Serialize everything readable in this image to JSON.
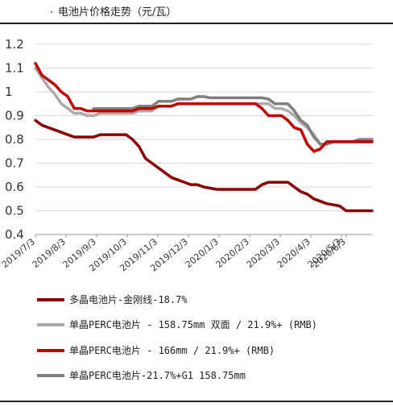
{
  "title": "电池片价格走势（元/瓦）",
  "chart_data": {
    "type": "line",
    "ylim": [
      0.4,
      1.2
    ],
    "yticks": [
      "1.2",
      "1.1",
      "1",
      "0.9",
      "0.8",
      "0.7",
      "0.6",
      "0.5",
      "0.4"
    ],
    "grid": true,
    "legend_position": "bottom",
    "x": [
      "2019/7/3",
      "2019/7/10",
      "2019/7/17",
      "2019/7/24",
      "2019/7/31",
      "2019/8/7",
      "2019/8/14",
      "2019/8/21",
      "2019/8/28",
      "2019/9/4",
      "2019/9/11",
      "2019/9/18",
      "2019/9/25",
      "2019/10/2",
      "2019/10/9",
      "2019/10/16",
      "2019/10/23",
      "2019/10/30",
      "2019/11/6",
      "2019/11/13",
      "2019/11/20",
      "2019/11/27",
      "2019/12/4",
      "2019/12/11",
      "2019/12/18",
      "2019/12/25",
      "2020/1/1",
      "2020/1/8",
      "2020/1/15",
      "2020/1/22",
      "2020/1/29",
      "2020/2/5",
      "2020/2/12",
      "2020/2/19",
      "2020/2/26",
      "2020/3/4",
      "2020/3/11",
      "2020/3/18",
      "2020/3/25",
      "2020/4/1",
      "2020/4/8",
      "2020/4/15",
      "2020/4/22",
      "2020/4/29",
      "2020/5/6",
      "2020/5/13",
      "2020/5/20",
      "2020/5/27",
      "2020/6/3",
      "2020/6/10",
      "2020/6/17",
      "2020/6/24",
      "2020/7/1"
    ],
    "xticks": [
      "2019/7/3",
      "2019/8/3",
      "2019/9/3",
      "2019/10/3",
      "2019/11/3",
      "2019/12/3",
      "2020/1/3",
      "2020/2/3",
      "2020/3/3",
      "2020/4/3",
      "2020/5/3",
      "2020/6/3"
    ],
    "series": [
      {
        "name": "多晶电池片-金刚线-18.7%",
        "color": "#8B0000",
        "values": [
          0.88,
          0.86,
          0.85,
          0.84,
          0.83,
          0.82,
          0.81,
          0.81,
          0.81,
          0.81,
          0.82,
          0.82,
          0.82,
          0.82,
          0.82,
          0.8,
          0.77,
          0.72,
          0.7,
          0.68,
          0.66,
          0.64,
          0.63,
          0.62,
          0.61,
          0.61,
          0.6,
          0.595,
          0.59,
          0.59,
          0.59,
          0.59,
          0.59,
          0.59,
          0.59,
          0.61,
          0.62,
          0.62,
          0.62,
          0.62,
          0.6,
          0.58,
          0.57,
          0.55,
          0.54,
          0.53,
          0.525,
          0.52,
          0.5,
          0.5,
          0.5,
          0.5,
          0.5
        ]
      },
      {
        "name": "单晶PERC电池片 - 158.75mm 双面 / 21.9%+ (RMB)",
        "color": "#AAAAAA",
        "values": [
          1.1,
          1.06,
          1.02,
          0.99,
          0.95,
          0.93,
          0.91,
          0.91,
          0.9,
          0.9,
          0.91,
          0.91,
          0.91,
          0.91,
          0.91,
          0.91,
          0.92,
          0.92,
          0.92,
          0.94,
          0.94,
          0.94,
          0.95,
          0.95,
          0.95,
          0.95,
          0.95,
          0.95,
          0.95,
          0.95,
          0.95,
          0.95,
          0.95,
          0.95,
          0.95,
          0.95,
          0.95,
          0.93,
          0.93,
          0.92,
          0.9,
          0.87,
          0.85,
          0.82,
          0.78,
          0.78,
          0.79,
          0.79,
          0.79,
          0.79,
          0.79,
          0.79,
          0.79
        ]
      },
      {
        "name": "单晶PERC电池片 - 166mm / 21.9%+ (RMB)",
        "color": "#C00000",
        "values": [
          1.12,
          1.07,
          1.05,
          1.03,
          1.0,
          0.98,
          0.93,
          0.93,
          0.92,
          0.92,
          0.92,
          0.92,
          0.92,
          0.92,
          0.92,
          0.92,
          0.93,
          0.93,
          0.93,
          0.94,
          0.94,
          0.94,
          0.95,
          0.95,
          0.95,
          0.95,
          0.95,
          0.95,
          0.95,
          0.95,
          0.95,
          0.95,
          0.95,
          0.95,
          0.95,
          0.93,
          0.9,
          0.9,
          0.9,
          0.88,
          0.85,
          0.84,
          0.78,
          0.75,
          0.76,
          0.79,
          0.79,
          0.79,
          0.79,
          0.79,
          0.79,
          0.79,
          0.79
        ]
      },
      {
        "name": "单晶PERC电池片-21.7%+G1 158.75mm",
        "color": "#808080",
        "values": [
          null,
          null,
          null,
          null,
          null,
          null,
          null,
          null,
          null,
          0.93,
          0.93,
          0.93,
          0.93,
          0.93,
          0.93,
          0.93,
          0.94,
          0.94,
          0.94,
          0.96,
          0.96,
          0.96,
          0.97,
          0.97,
          0.97,
          0.98,
          0.98,
          0.975,
          0.975,
          0.975,
          0.975,
          0.975,
          0.975,
          0.975,
          0.975,
          0.975,
          0.97,
          0.95,
          0.95,
          0.95,
          0.92,
          0.88,
          0.86,
          0.81,
          0.78,
          0.78,
          0.79,
          0.79,
          0.79,
          0.79,
          0.8,
          0.8,
          0.8
        ]
      }
    ]
  }
}
